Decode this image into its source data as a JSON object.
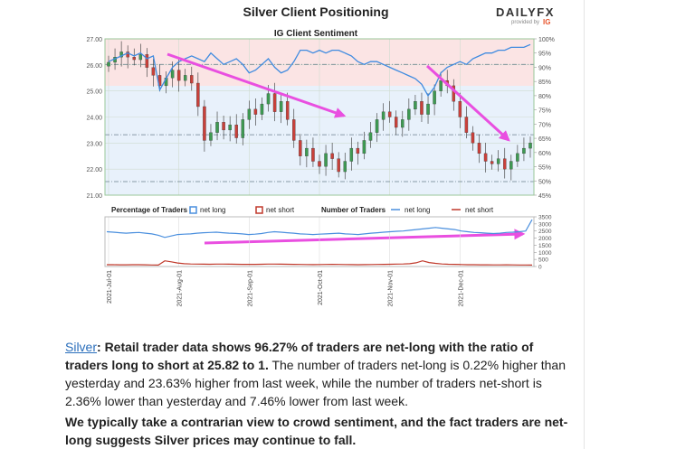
{
  "header": {
    "title": "Silver Client Positioning",
    "brand": "DAILYFX",
    "brand_sub": "provided by",
    "brand_ig": "IG",
    "accent": "#e8542c"
  },
  "chart_data": [
    {
      "type": "candlestick+line",
      "title": "IG Client Sentiment",
      "x": [
        "2021-Jul-01",
        "2021-Aug-01",
        "2021-Sep-01",
        "2021-Oct-01",
        "2021-Nov-01",
        "2021-Dec-01"
      ],
      "y_left_ticks": [
        "27.00",
        "26.00",
        "25.00",
        "24.00",
        "23.00",
        "22.00",
        "21.00"
      ],
      "y_left_range": [
        21.0,
        27.0
      ],
      "y_right_ticks": [
        "100%",
        "95%",
        "90%",
        "85%",
        "80%",
        "75%",
        "70%",
        "65%",
        "60%",
        "55%",
        "50%",
        "45%"
      ],
      "y_right_range": [
        45,
        100
      ],
      "price_close": [
        26.1,
        26.3,
        26.5,
        26.3,
        26.2,
        26.4,
        25.9,
        25.6,
        25.2,
        25.5,
        25.8,
        25.4,
        25.6,
        25.3,
        24.4,
        23.1,
        23.4,
        23.8,
        23.5,
        23.7,
        23.2,
        23.9,
        24.3,
        24.1,
        24.5,
        24.9,
        24.2,
        24.6,
        23.9,
        23.1,
        22.5,
        22.8,
        22.3,
        22.1,
        22.6,
        22.4,
        21.9,
        22.3,
        22.8,
        22.6,
        23.1,
        23.4,
        23.9,
        24.2,
        24.0,
        23.6,
        23.9,
        24.3,
        24.6,
        24.1,
        24.5,
        25.0,
        25.4,
        25.2,
        24.6,
        24.0,
        23.4,
        23.0,
        22.6,
        22.3,
        22.2,
        22.4,
        22.0,
        22.3,
        22.6,
        22.8,
        23.0
      ],
      "sentiment_pct": [
        92,
        93,
        94,
        95,
        94,
        95,
        93,
        94,
        82,
        86,
        90,
        92,
        93,
        94,
        93,
        92,
        95,
        93,
        91,
        92,
        93,
        91,
        88,
        89,
        91,
        93,
        90,
        88,
        89,
        92,
        96,
        96,
        95,
        96,
        95,
        96,
        96,
        95,
        94,
        92,
        91,
        92,
        92,
        91,
        90,
        89,
        88,
        87,
        86,
        84,
        80,
        83,
        88,
        90,
        91,
        92,
        91,
        93,
        94,
        95,
        95,
        96,
        96,
        97,
        97,
        97,
        98
      ],
      "line_color": "#3f8be0",
      "candle_up_color": "#3e9a52",
      "candle_down_color": "#c9403a",
      "hlines": [
        26.02,
        23.32,
        21.52
      ]
    },
    {
      "type": "line",
      "legend_title_pct": "Percentage of Traders",
      "legend_title_num": "Number of Traders",
      "series": [
        {
          "name": "net long",
          "color": "#4a8fde"
        },
        {
          "name": "net short",
          "color": "#c0392b"
        }
      ],
      "y_ticks": [
        "3500",
        "3000",
        "2500",
        "2000",
        "1500",
        "1000",
        "500",
        "0"
      ],
      "y_range": [
        0,
        3500
      ],
      "net_long": [
        2450,
        2420,
        2380,
        2350,
        2380,
        2400,
        2350,
        2300,
        2200,
        2050,
        2150,
        2250,
        2280,
        2300,
        2350,
        2380,
        2400,
        2420,
        2380,
        2350,
        2330,
        2300,
        2250,
        2280,
        2320,
        2400,
        2450,
        2420,
        2380,
        2350,
        2300,
        2280,
        2250,
        2280,
        2300,
        2320,
        2350,
        2300,
        2280,
        2250,
        2300,
        2350,
        2380,
        2420,
        2450,
        2480,
        2500,
        2550,
        2600,
        2650,
        2700,
        2750,
        2700,
        2650,
        2600,
        2500,
        2450,
        2400,
        2380,
        2350,
        2320,
        2350,
        2400,
        2420,
        2450,
        2500,
        3300
      ],
      "net_short": [
        130,
        125,
        120,
        118,
        125,
        130,
        120,
        110,
        105,
        400,
        330,
        250,
        200,
        180,
        170,
        165,
        160,
        170,
        175,
        165,
        160,
        155,
        150,
        155,
        160,
        170,
        175,
        165,
        160,
        150,
        145,
        140,
        135,
        140,
        145,
        150,
        145,
        140,
        135,
        130,
        135,
        140,
        145,
        150,
        160,
        170,
        180,
        200,
        260,
        400,
        280,
        220,
        180,
        160,
        150,
        140,
        130,
        125,
        120,
        120,
        115,
        115,
        120,
        115,
        110,
        110,
        105
      ]
    }
  ],
  "article": {
    "p1_link": "Silver",
    "p1_bold": ": Retail trader data shows 96.27% of traders are net-long with the ratio of traders long to short at 25.82 to 1.",
    "p1_rest": " The number of traders net-long is 0.22% higher than yesterday and 23.63% higher from last week, while the number of traders net-short is 2.36% lower than yesterday and 7.46% lower from last week.",
    "p2": "We typically take a contrarian view to crowd sentiment, and the fact traders are net-long suggests Silver prices may continue to fall."
  }
}
